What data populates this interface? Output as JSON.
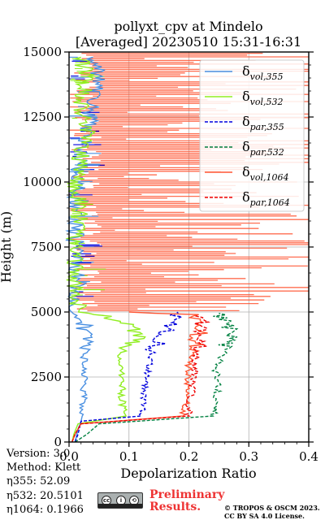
{
  "chart_data": {
    "type": "line",
    "title": [
      "pollyxt_cpv at Mindelo",
      "[Averaged] 20230510 15:31-16:31"
    ],
    "xlabel": "Depolarization Ratio",
    "ylabel": "Height (m)",
    "xlim": [
      0,
      0.4
    ],
    "ylim": [
      0,
      15000
    ],
    "xticks": [
      "0.0",
      "0.1",
      "0.2",
      "0.3",
      "0.4"
    ],
    "yticks": [
      "0",
      "2500",
      "5000",
      "7500",
      "10000",
      "12500",
      "15000"
    ],
    "grid": true,
    "legend_position": "top-right",
    "series": [
      {
        "label_base": "δ",
        "label_sub": "vol,355",
        "color": "#4a90e2",
        "dash": "solid",
        "points": [
          [
            0.01,
            0
          ],
          [
            0.012,
            200
          ],
          [
            0.015,
            500
          ],
          [
            0.02,
            800
          ],
          [
            0.022,
            1000
          ],
          [
            0.024,
            1500
          ],
          [
            0.025,
            2000
          ],
          [
            0.025,
            2500
          ],
          [
            0.025,
            3000
          ],
          [
            0.026,
            3500
          ],
          [
            0.03,
            3800
          ],
          [
            0.028,
            4200
          ],
          [
            0.022,
            4600
          ],
          [
            0.02,
            4800
          ],
          [
            0.012,
            5000
          ],
          [
            0.01,
            5200
          ],
          [
            0.012,
            5600
          ],
          [
            0.015,
            6000
          ],
          [
            0.012,
            7000
          ],
          [
            0.01,
            8000
          ],
          [
            0.012,
            9000
          ],
          [
            0.015,
            10000
          ],
          [
            0.02,
            11000
          ],
          [
            0.03,
            12000
          ],
          [
            0.04,
            13000
          ],
          [
            0.05,
            14000
          ],
          [
            0.04,
            14800
          ]
        ]
      },
      {
        "label_base": "δ",
        "label_sub": "vol,532",
        "color": "#90ee20",
        "dash": "solid",
        "points": [
          [
            0.005,
            0
          ],
          [
            0.008,
            300
          ],
          [
            0.015,
            700
          ],
          [
            0.095,
            1000
          ],
          [
            0.09,
            1300
          ],
          [
            0.088,
            1800
          ],
          [
            0.09,
            2400
          ],
          [
            0.088,
            2800
          ],
          [
            0.085,
            3200
          ],
          [
            0.09,
            3500
          ],
          [
            0.1,
            3800
          ],
          [
            0.118,
            4100
          ],
          [
            0.105,
            4400
          ],
          [
            0.08,
            4700
          ],
          [
            0.05,
            4900
          ],
          [
            0.025,
            5000
          ],
          [
            0.015,
            5200
          ],
          [
            0.01,
            6000
          ],
          [
            0.01,
            7000
          ],
          [
            0.012,
            8000
          ],
          [
            0.02,
            9000
          ],
          [
            0.01,
            10000
          ],
          [
            0.02,
            11000
          ],
          [
            0.03,
            12000
          ],
          [
            0.02,
            13000
          ],
          [
            0.03,
            14000
          ],
          [
            0.02,
            14800
          ]
        ]
      },
      {
        "label_base": "δ",
        "label_sub": "par,355",
        "color": "#0000dd",
        "dash": "dashed",
        "points": [
          [
            0.01,
            0
          ],
          [
            0.015,
            300
          ],
          [
            0.02,
            800
          ],
          [
            0.12,
            1000
          ],
          [
            0.125,
            1500
          ],
          [
            0.125,
            2000
          ],
          [
            0.13,
            2600
          ],
          [
            0.135,
            3000
          ],
          [
            0.14,
            3500
          ],
          [
            0.15,
            3900
          ],
          [
            0.165,
            4300
          ],
          [
            0.17,
            4700
          ],
          [
            0.18,
            5000
          ]
        ]
      },
      {
        "label_base": "δ",
        "label_sub": "par,532",
        "color": "#008040",
        "dash": "dashed",
        "points": [
          [
            0.01,
            0
          ],
          [
            0.03,
            300
          ],
          [
            0.05,
            700
          ],
          [
            0.24,
            1000
          ],
          [
            0.245,
            1600
          ],
          [
            0.25,
            2200
          ],
          [
            0.245,
            2800
          ],
          [
            0.255,
            3300
          ],
          [
            0.265,
            3800
          ],
          [
            0.27,
            4100
          ],
          [
            0.265,
            4600
          ],
          [
            0.25,
            4950
          ]
        ]
      },
      {
        "label_base": "δ",
        "label_sub": "vol,1064",
        "color": "#ff5533",
        "dash": "solid",
        "points": [
          [
            0.005,
            0
          ],
          [
            0.01,
            300
          ],
          [
            0.02,
            700
          ],
          [
            0.19,
            1000
          ],
          [
            0.195,
            1500
          ],
          [
            0.195,
            2000
          ],
          [
            0.2,
            2600
          ],
          [
            0.2,
            3000
          ],
          [
            0.21,
            3500
          ],
          [
            0.215,
            4000
          ],
          [
            0.22,
            4500
          ],
          [
            0.21,
            4900
          ],
          [
            0.1,
            5000
          ]
        ]
      },
      {
        "label_base": "δ",
        "label_sub": "par,1064",
        "color": "#ee0000",
        "dash": "dashed",
        "points": [
          [
            0.005,
            0
          ],
          [
            0.01,
            300
          ],
          [
            0.02,
            700
          ],
          [
            0.2,
            1000
          ],
          [
            0.2,
            1500
          ],
          [
            0.205,
            2000
          ],
          [
            0.21,
            2600
          ],
          [
            0.21,
            3000
          ],
          [
            0.215,
            3500
          ],
          [
            0.22,
            4000
          ],
          [
            0.225,
            4500
          ],
          [
            0.215,
            4900
          ]
        ]
      }
    ]
  },
  "info": {
    "version": "Version: 3.0",
    "method": "Method: Klett",
    "eta355": "η355:  52.09",
    "eta532": "η532: 20.5101",
    "eta1064": "η1064: 0.1966"
  },
  "footer": {
    "preliminary_line1": "Preliminary",
    "preliminary_line2": "Results.",
    "copyright_line1": "© TROPOS & OSCM 2023.",
    "copyright_line2": "CC BY SA 4.0 License."
  },
  "license_badge": {
    "icons": [
      "cc-icon",
      "by-icon",
      "sa-icon"
    ]
  }
}
